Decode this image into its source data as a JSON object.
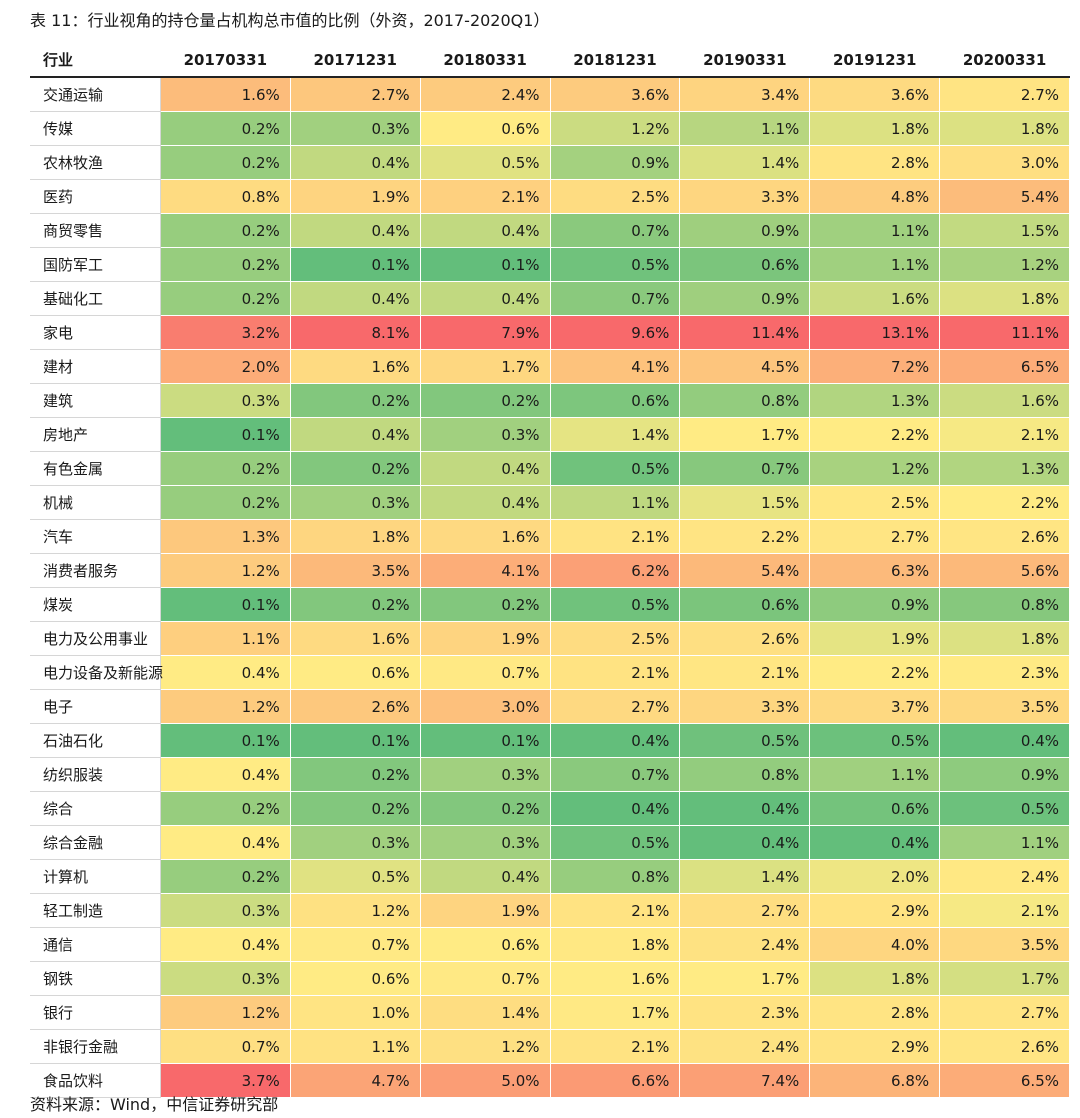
{
  "title": "表 11：行业视角的持仓量占机构总市值的比例（外资，2017-2020Q1）",
  "source": "资料来源：Wind，中信证券研究部",
  "chart_data": {
    "type": "table",
    "header_label": "行业",
    "columns": [
      "20170331",
      "20171231",
      "20180331",
      "20181231",
      "20190331",
      "20191231",
      "20200331"
    ],
    "rows": [
      {
        "industry": "交通运输",
        "values": [
          "1.6%",
          "2.7%",
          "2.4%",
          "3.6%",
          "3.4%",
          "3.6%",
          "2.7%"
        ]
      },
      {
        "industry": "传媒",
        "values": [
          "0.2%",
          "0.3%",
          "0.6%",
          "1.2%",
          "1.1%",
          "1.8%",
          "1.8%"
        ]
      },
      {
        "industry": "农林牧渔",
        "values": [
          "0.2%",
          "0.4%",
          "0.5%",
          "0.9%",
          "1.4%",
          "2.8%",
          "3.0%"
        ]
      },
      {
        "industry": "医药",
        "values": [
          "0.8%",
          "1.9%",
          "2.1%",
          "2.5%",
          "3.3%",
          "4.8%",
          "5.4%"
        ]
      },
      {
        "industry": "商贸零售",
        "values": [
          "0.2%",
          "0.4%",
          "0.4%",
          "0.7%",
          "0.9%",
          "1.1%",
          "1.5%"
        ]
      },
      {
        "industry": "国防军工",
        "values": [
          "0.2%",
          "0.1%",
          "0.1%",
          "0.5%",
          "0.6%",
          "1.1%",
          "1.2%"
        ]
      },
      {
        "industry": "基础化工",
        "values": [
          "0.2%",
          "0.4%",
          "0.4%",
          "0.7%",
          "0.9%",
          "1.6%",
          "1.8%"
        ]
      },
      {
        "industry": "家电",
        "values": [
          "3.2%",
          "8.1%",
          "7.9%",
          "9.6%",
          "11.4%",
          "13.1%",
          "11.1%"
        ]
      },
      {
        "industry": "建材",
        "values": [
          "2.0%",
          "1.6%",
          "1.7%",
          "4.1%",
          "4.5%",
          "7.2%",
          "6.5%"
        ]
      },
      {
        "industry": "建筑",
        "values": [
          "0.3%",
          "0.2%",
          "0.2%",
          "0.6%",
          "0.8%",
          "1.3%",
          "1.6%"
        ]
      },
      {
        "industry": "房地产",
        "values": [
          "0.1%",
          "0.4%",
          "0.3%",
          "1.4%",
          "1.7%",
          "2.2%",
          "2.1%"
        ]
      },
      {
        "industry": "有色金属",
        "values": [
          "0.2%",
          "0.2%",
          "0.4%",
          "0.5%",
          "0.7%",
          "1.2%",
          "1.3%"
        ]
      },
      {
        "industry": "机械",
        "values": [
          "0.2%",
          "0.3%",
          "0.4%",
          "1.1%",
          "1.5%",
          "2.5%",
          "2.2%"
        ]
      },
      {
        "industry": "汽车",
        "values": [
          "1.3%",
          "1.8%",
          "1.6%",
          "2.1%",
          "2.2%",
          "2.7%",
          "2.6%"
        ]
      },
      {
        "industry": "消费者服务",
        "values": [
          "1.2%",
          "3.5%",
          "4.1%",
          "6.2%",
          "5.4%",
          "6.3%",
          "5.6%"
        ]
      },
      {
        "industry": "煤炭",
        "values": [
          "0.1%",
          "0.2%",
          "0.2%",
          "0.5%",
          "0.6%",
          "0.9%",
          "0.8%"
        ]
      },
      {
        "industry": "电力及公用事业",
        "values": [
          "1.1%",
          "1.6%",
          "1.9%",
          "2.5%",
          "2.6%",
          "1.9%",
          "1.8%"
        ]
      },
      {
        "industry": "电力设备及新能源",
        "values": [
          "0.4%",
          "0.6%",
          "0.7%",
          "2.1%",
          "2.1%",
          "2.2%",
          "2.3%"
        ]
      },
      {
        "industry": "电子",
        "values": [
          "1.2%",
          "2.6%",
          "3.0%",
          "2.7%",
          "3.3%",
          "3.7%",
          "3.5%"
        ]
      },
      {
        "industry": "石油石化",
        "values": [
          "0.1%",
          "0.1%",
          "0.1%",
          "0.4%",
          "0.5%",
          "0.5%",
          "0.4%"
        ]
      },
      {
        "industry": "纺织服装",
        "values": [
          "0.4%",
          "0.2%",
          "0.3%",
          "0.7%",
          "0.8%",
          "1.1%",
          "0.9%"
        ]
      },
      {
        "industry": "综合",
        "values": [
          "0.2%",
          "0.2%",
          "0.2%",
          "0.4%",
          "0.4%",
          "0.6%",
          "0.5%"
        ]
      },
      {
        "industry": "综合金融",
        "values": [
          "0.4%",
          "0.3%",
          "0.3%",
          "0.5%",
          "0.4%",
          "0.4%",
          "1.1%"
        ]
      },
      {
        "industry": "计算机",
        "values": [
          "0.2%",
          "0.5%",
          "0.4%",
          "0.8%",
          "1.4%",
          "2.0%",
          "2.4%"
        ]
      },
      {
        "industry": "轻工制造",
        "values": [
          "0.3%",
          "1.2%",
          "1.9%",
          "2.1%",
          "2.7%",
          "2.9%",
          "2.1%"
        ]
      },
      {
        "industry": "通信",
        "values": [
          "0.4%",
          "0.7%",
          "0.6%",
          "1.8%",
          "2.4%",
          "4.0%",
          "3.5%"
        ]
      },
      {
        "industry": "钢铁",
        "values": [
          "0.3%",
          "0.6%",
          "0.7%",
          "1.6%",
          "1.7%",
          "1.8%",
          "1.7%"
        ]
      },
      {
        "industry": "银行",
        "values": [
          "1.2%",
          "1.0%",
          "1.4%",
          "1.7%",
          "2.3%",
          "2.8%",
          "2.7%"
        ]
      },
      {
        "industry": "非银行金融",
        "values": [
          "0.7%",
          "1.1%",
          "1.2%",
          "2.1%",
          "2.4%",
          "2.9%",
          "2.6%"
        ]
      },
      {
        "industry": "食品饮料",
        "values": [
          "3.7%",
          "4.7%",
          "5.0%",
          "6.6%",
          "7.4%",
          "6.8%",
          "6.5%"
        ]
      }
    ],
    "color_scale": {
      "low": "#63be7b",
      "mid": "#ffeb84",
      "high": "#f8696b",
      "scope": "per-column"
    }
  }
}
